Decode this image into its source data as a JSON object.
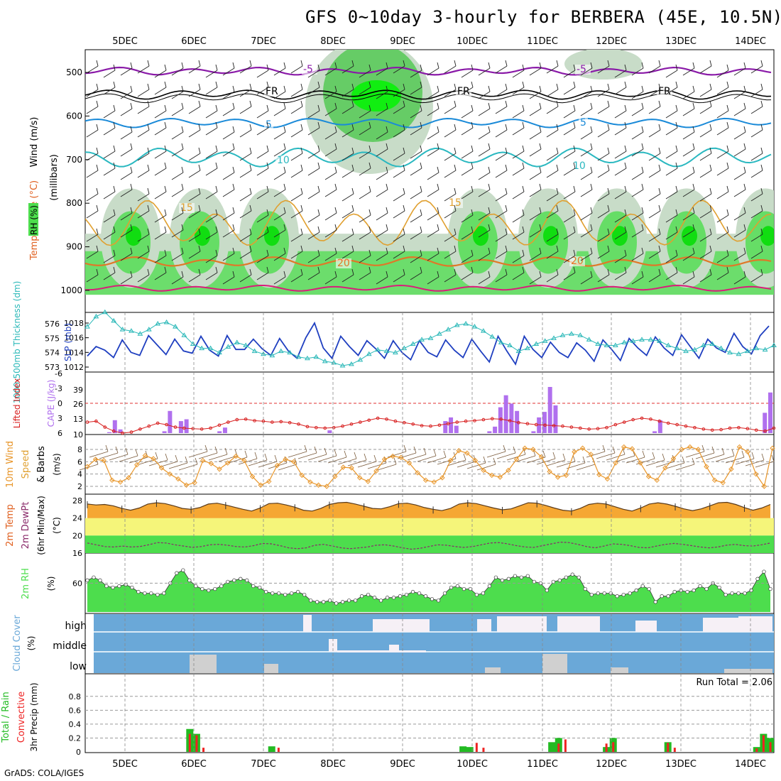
{
  "title": "GFS 0~10day 3-hourly for BERBERA (45E, 10.5N)",
  "footer": "GrADS: COLA/IGES",
  "chart_data": {
    "type": "meteogram",
    "x_labels": [
      "5DEC",
      "6DEC",
      "7DEC",
      "8DEC",
      "9DEC",
      "10DEC",
      "11DEC",
      "12DEC",
      "13DEC",
      "14DEC"
    ],
    "colors": {
      "rh_green": "#4ddd4d",
      "rh_light": "#c8dcc8",
      "slp": "#1f3fc0",
      "thickness": "#2ab8b8",
      "cape": "#b070ee",
      "lifted": "#d82020",
      "wind": "#e8962a",
      "temp_fill": "#f5a733",
      "dew_band_yellow": "#f5f57a",
      "dew_band_green": "#4ddd4d",
      "rh2m": "#4ddd4d",
      "cloud_blue": "#6aa8d8",
      "cloud_white": "#f6f0f6",
      "cloud_gray": "#d0d0d0",
      "precip_total": "#22bb22",
      "precip_conv": "#ee2222"
    },
    "panels": [
      {
        "name": "upper",
        "ylabel": "(millibars)",
        "legend": [
          "RH (%)",
          "Temperature (°C)",
          "Wind (m/s)"
        ],
        "yticks": [
          "500",
          "600",
          "700",
          "800",
          "900",
          "1000"
        ],
        "contour_labels": [
          "-5",
          "-5",
          "FR",
          "FR",
          "FR",
          "5",
          "5",
          "10",
          "10",
          "15",
          "15",
          "20",
          "20"
        ]
      },
      {
        "name": "slp_thickness",
        "ylabel_left": "1000-500mb Thickness (dm)",
        "ylabel_right": "SLP (mb)",
        "yticks_left": [
          "576",
          "575",
          "574",
          "573"
        ],
        "yticks_right": [
          "1018",
          "1016",
          "1014",
          "1012"
        ],
        "slp": [
          1013.5,
          1014.8,
          1014.3,
          1013.3,
          1015.7,
          1014.0,
          1013.6,
          1016.3,
          1015.0,
          1013.7,
          1015.8,
          1014.2,
          1013.9,
          1016.2,
          1014.3,
          1013.5,
          1016.3,
          1014.4,
          1014.4,
          1015.8,
          1014.5,
          1013.6,
          1015.9,
          1014.2,
          1013.2,
          1016.0,
          1018.0,
          1014.6,
          1013.2,
          1016.2,
          1014.8,
          1013.6,
          1015.6,
          1014.5,
          1013.2,
          1015.6,
          1014.0,
          1013.0,
          1015.6,
          1014.0,
          1013.4,
          1015.7,
          1014.3,
          1013.3,
          1015.8,
          1014.2,
          1012.7,
          1016.2,
          1014.2,
          1012.4,
          1016.2,
          1014.4,
          1013.3,
          1015.4,
          1014.0,
          1013.3,
          1015.3,
          1014.3,
          1012.8,
          1015.7,
          1014.4,
          1012.9,
          1015.9,
          1014.6,
          1013.6,
          1016.1,
          1014.6,
          1013.6,
          1016.4,
          1014.8,
          1013.2,
          1015.8,
          1014.6,
          1014.0,
          1016.6,
          1014.8,
          1013.8,
          1016.3,
          1017.6
        ],
        "thickness": [
          575.8,
          576.5,
          576.8,
          576.2,
          575.6,
          575.5,
          575.3,
          575.6,
          576.0,
          576.1,
          575.8,
          575.2,
          574.6,
          574.3,
          574.3,
          574.0,
          574.4,
          574.7,
          574.5,
          574.1,
          573.9,
          573.8,
          574.1,
          574.0,
          573.7,
          573.6,
          573.7,
          573.4,
          573.3,
          573.1,
          573.2,
          573.5,
          573.9,
          574.2,
          574.1,
          574.0,
          574.3,
          574.6,
          574.9,
          575.0,
          575.3,
          575.6,
          575.9,
          576.0,
          575.8,
          575.5,
          575.1,
          574.7,
          574.5,
          574.1,
          574.3,
          574.6,
          574.8,
          575.0,
          575.2,
          575.3,
          575.2,
          574.9,
          574.6,
          574.5,
          574.5,
          574.7,
          574.8,
          574.9,
          574.9,
          574.8,
          574.5,
          574.3,
          574.1,
          574.2,
          574.5,
          574.6,
          574.3,
          574.0,
          573.9,
          574.1,
          574.3,
          574.2,
          574.5
        ]
      },
      {
        "name": "cape_li",
        "ylabel_left": "Lifted Index",
        "ylabel_right": "CAPE (J/kg)",
        "yticks_left": [
          "-6",
          "-3",
          "0",
          "3",
          "6"
        ],
        "yticks_right": [
          "39",
          "26",
          "13",
          "10"
        ],
        "lifted_index": [
          3.8,
          3.6,
          4.8,
          5.6,
          6.0,
          5.8,
          5.2,
          4.6,
          4.0,
          4.3,
          4.8,
          5.0,
          5.1,
          5.2,
          5.0,
          4.4,
          3.8,
          3.3,
          3.2,
          3.5,
          3.6,
          3.8,
          3.7,
          3.9,
          4.2,
          4.7,
          4.9,
          5.0,
          4.9,
          4.6,
          4.2,
          3.8,
          3.4,
          3.0,
          3.2,
          3.6,
          3.9,
          4.2,
          4.5,
          4.6,
          4.4,
          4.1,
          3.8,
          3.6,
          3.5,
          3.3,
          3.1,
          3.2,
          3.5,
          3.9,
          4.1,
          4.3,
          4.4,
          4.5,
          4.6,
          4.8,
          5.0,
          5.2,
          5.1,
          4.9,
          4.3,
          3.8,
          3.3,
          3.0,
          3.2,
          3.6,
          4.0,
          4.3,
          4.6,
          4.9,
          5.2,
          5.4,
          5.3,
          5.0,
          4.9,
          5.1,
          5.4,
          5.6,
          5.0
        ],
        "cape": [
          0,
          0,
          0,
          0,
          1,
          14,
          4,
          0,
          0,
          0,
          0,
          0,
          0,
          0,
          2,
          24,
          0,
          13,
          15,
          0,
          0,
          0,
          0,
          0,
          2,
          6,
          0,
          0,
          0,
          0,
          0,
          0,
          0,
          0,
          0,
          0,
          0,
          0,
          0,
          0,
          0,
          0,
          0,
          0,
          3,
          0,
          0,
          0,
          0,
          0,
          0,
          0,
          0,
          0,
          0,
          0,
          0,
          0,
          0,
          0,
          0,
          0,
          0,
          0,
          0,
          13,
          17,
          8,
          0,
          0,
          0,
          0,
          0,
          2,
          7,
          28,
          41,
          32,
          24,
          0,
          0,
          2,
          17,
          23,
          50,
          30,
          0,
          0,
          0,
          0,
          0,
          0,
          0,
          0,
          0,
          0,
          0,
          0,
          0,
          0,
          0,
          0,
          0,
          2,
          14,
          0,
          0,
          0,
          0,
          0,
          0,
          0,
          0,
          0,
          0,
          0,
          0,
          0,
          0,
          0,
          0,
          0,
          0,
          22,
          44
        ]
      },
      {
        "name": "wind10m",
        "ylabel": "10m Wind Speed & Barbs (m/s)",
        "yticks": [
          "8",
          "6",
          "4",
          "2"
        ],
        "speed": [
          5.2,
          6.4,
          6.2,
          3.0,
          2.7,
          3.4,
          5.5,
          7.0,
          6.5,
          5.0,
          4.0,
          3.2,
          2.2,
          2.6,
          6.2,
          5.7,
          4.8,
          5.8,
          6.9,
          6.2,
          3.6,
          2.2,
          2.8,
          5.4,
          6.4,
          6.0,
          3.8,
          2.7,
          2.2,
          2.0,
          3.6,
          5.1,
          5.0,
          3.4,
          2.8,
          4.5,
          6.4,
          6.9,
          6.7,
          5.8,
          4.2,
          3.0,
          2.7,
          3.4,
          6.2,
          7.8,
          7.4,
          6.2,
          4.6,
          3.8,
          3.5,
          4.6,
          6.4,
          8.2,
          8.0,
          6.8,
          4.4,
          3.5,
          3.8,
          7.6,
          8.2,
          7.2,
          3.9,
          3.2,
          5.8,
          8.4,
          8.1,
          5.8,
          3.6,
          3.0,
          5.0,
          6.5,
          8.0,
          8.4,
          8.0,
          5.2,
          3.0,
          2.6,
          4.8,
          8.4,
          7.6,
          4.0,
          2.0,
          8.2
        ]
      },
      {
        "name": "temp2m",
        "ylabel": "2m Temp 2m DewPt (6hr Min/Max) (°C)",
        "yticks": [
          "28",
          "24",
          "20",
          "16"
        ],
        "temp": [
          27.2,
          27.0,
          27.1,
          26.8,
          26.2,
          25.8,
          26.3,
          27.2,
          27.5,
          27.3,
          26.8,
          26.2,
          26.0,
          26.4,
          27.2,
          27.4,
          27.0,
          26.5,
          26.0,
          25.6,
          26.3,
          27.3,
          27.4,
          27.0,
          26.5,
          25.8,
          25.6,
          26.2,
          27.1,
          27.5,
          27.6,
          27.2,
          26.7,
          26.2,
          26.1,
          26.6,
          27.3,
          27.4,
          27.0,
          26.4,
          26.0,
          25.7,
          26.2,
          27.2,
          27.5,
          27.3,
          26.8,
          26.3,
          25.9,
          26.1,
          26.8,
          27.5,
          27.4,
          26.9,
          26.3,
          25.8,
          25.6,
          26.2,
          27.1,
          27.4,
          27.2,
          26.6,
          26.0,
          25.6,
          26.3,
          27.2,
          27.5,
          27.2,
          26.7,
          26.1,
          25.7,
          26.1,
          26.8,
          27.5,
          27.6,
          27.1,
          26.4,
          25.8,
          26.3,
          27.1
        ],
        "dewpt": [
          18.3,
          17.9,
          17.5,
          17.4,
          17.6,
          17.4,
          17.5,
          17.9,
          18.4,
          18.3,
          17.9,
          17.6,
          17.3,
          17.5,
          17.9,
          18.0,
          17.8,
          17.5,
          17.4,
          17.7,
          18.2,
          18.1,
          17.7,
          17.2,
          17.0,
          17.2,
          17.8,
          18.0,
          17.6,
          17.2,
          17.0,
          17.2,
          17.4,
          17.8,
          17.9,
          17.6,
          17.2,
          16.9,
          17.1,
          17.5,
          17.9,
          17.8,
          17.5,
          17.3,
          17.5,
          17.9,
          18.3,
          18.4,
          18.1,
          17.7,
          17.4,
          17.3,
          17.7,
          18.1,
          18.5,
          18.4,
          18.0,
          17.5,
          17.2,
          17.6,
          18.1,
          18.0,
          17.7,
          17.3,
          17.2,
          17.6,
          18.0,
          18.2,
          18.0,
          17.7,
          17.4,
          17.2,
          17.4,
          17.8,
          18.0,
          17.7,
          17.6,
          17.9,
          18.3
        ]
      },
      {
        "name": "rh2m",
        "ylabel": "2m RH (%)",
        "yticks": [
          "60"
        ],
        "rh": [
          62,
          64,
          62,
          58,
          57,
          58,
          59,
          57,
          54,
          53,
          53,
          52,
          53,
          60,
          67,
          69,
          62,
          58,
          56,
          55,
          56,
          58,
          61,
          62,
          63,
          62,
          58,
          57,
          54,
          53,
          53,
          52,
          53,
          54,
          52,
          48,
          47,
          47,
          48,
          46,
          47,
          48,
          48,
          51,
          52,
          50,
          48,
          50,
          50,
          51,
          52,
          54,
          53,
          51,
          49,
          48,
          53,
          57,
          58,
          56,
          56,
          52,
          53,
          58,
          64,
          62,
          63,
          65,
          64,
          65,
          61,
          60,
          55,
          61,
          62,
          64,
          66,
          64,
          56,
          52,
          53,
          53,
          53,
          51,
          52,
          53,
          55,
          58,
          56,
          47,
          51,
          51,
          54,
          55,
          54,
          55,
          58,
          56,
          60,
          57,
          52,
          53,
          53,
          53,
          55,
          63,
          68,
          56
        ]
      },
      {
        "name": "cloud",
        "ylabel": "Cloud Cover (%)",
        "levels": [
          "high",
          "middle",
          "low"
        ]
      },
      {
        "name": "precip",
        "ylabel_left": "Total / Rain Convective",
        "ylabel": "3hr Precip (mm)",
        "yticks": [
          "0.8",
          "0.6",
          "0.4",
          "0.2",
          "0"
        ],
        "annotation": "Run Total = 2.06",
        "total": [
          0,
          0,
          0,
          0,
          0,
          0,
          0,
          0,
          0,
          0,
          0,
          0,
          0,
          0,
          0,
          0.33,
          0.26,
          0,
          0,
          0,
          0,
          0,
          0,
          0,
          0,
          0,
          0,
          0.08,
          0,
          0,
          0,
          0,
          0,
          0,
          0,
          0,
          0,
          0,
          0,
          0,
          0,
          0,
          0,
          0,
          0,
          0,
          0,
          0,
          0,
          0,
          0,
          0,
          0,
          0,
          0,
          0.08,
          0.07,
          0,
          0,
          0,
          0,
          0,
          0,
          0,
          0,
          0,
          0,
          0,
          0.14,
          0.2,
          0,
          0,
          0,
          0,
          0,
          0,
          0.07,
          0.2,
          0,
          0,
          0,
          0,
          0,
          0,
          0,
          0.14,
          0,
          0,
          0,
          0,
          0,
          0,
          0,
          0,
          0,
          0,
          0,
          0,
          0.07,
          0.26,
          0.2
        ],
        "conv": [
          0,
          0,
          0,
          0,
          0,
          0,
          0,
          0,
          0,
          0,
          0,
          0,
          0,
          0,
          0,
          0.26,
          0.24,
          0.06,
          0,
          0,
          0,
          0,
          0,
          0,
          0,
          0,
          0,
          0,
          0.06,
          0,
          0,
          0,
          0,
          0,
          0,
          0,
          0,
          0,
          0,
          0,
          0,
          0,
          0,
          0,
          0,
          0,
          0,
          0,
          0,
          0,
          0,
          0,
          0,
          0,
          0,
          0,
          0,
          0.13,
          0.06,
          0,
          0,
          0,
          0,
          0,
          0,
          0,
          0,
          0,
          0,
          0.12,
          0.18,
          0,
          0,
          0,
          0,
          0,
          0.12,
          0.14,
          0,
          0,
          0,
          0,
          0,
          0,
          0,
          0.13,
          0.06,
          0,
          0,
          0,
          0,
          0,
          0,
          0,
          0,
          0,
          0,
          0,
          0.05,
          0.24,
          0.14
        ]
      }
    ]
  }
}
